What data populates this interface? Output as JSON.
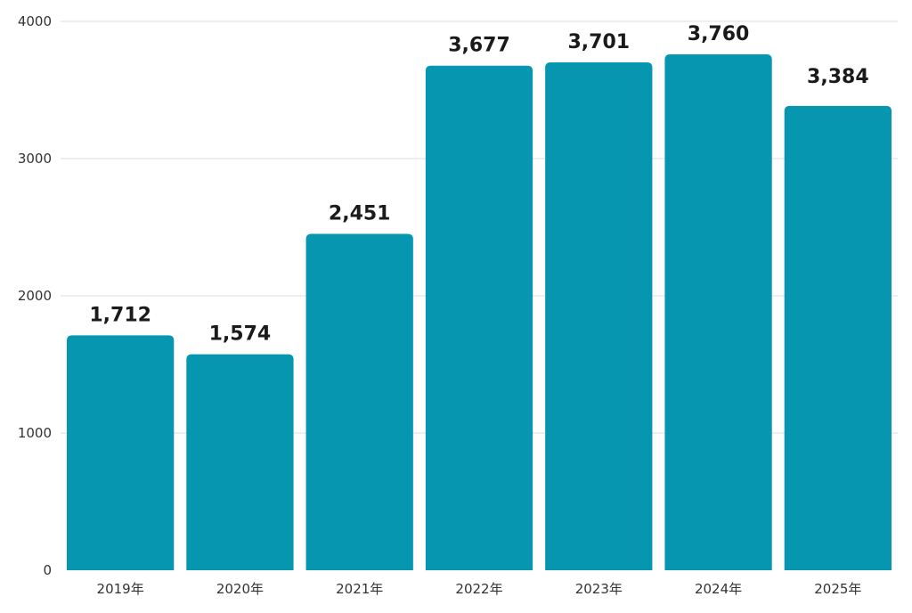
{
  "chart_data": {
    "type": "bar",
    "title": "",
    "xlabel": "",
    "ylabel": "",
    "ylim": [
      0,
      4000
    ],
    "yticks": [
      0,
      1000,
      2000,
      3000,
      4000
    ],
    "grid": true,
    "categories": [
      "2019年",
      "2020年",
      "2021年",
      "2022年",
      "2023年",
      "2024年",
      "2025年"
    ],
    "values": [
      1712,
      1574,
      2451,
      3677,
      3701,
      3760,
      3384
    ],
    "value_labels": [
      "1,712",
      "1,574",
      "2,451",
      "3,677",
      "3,701",
      "3,760",
      "3,384"
    ],
    "highlight_index": 6,
    "colors": {
      "bar": "#0696b0",
      "label": "#1a1a1a",
      "highlight_label": "#c4122e",
      "grid": "#dedede",
      "axis_text": "#333333"
    }
  }
}
